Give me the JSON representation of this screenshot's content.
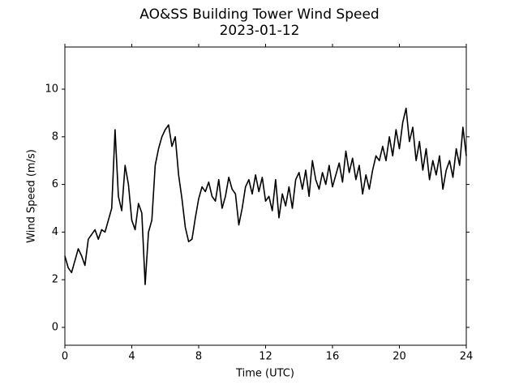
{
  "chart_data": {
    "type": "line",
    "title": "AO&SS Building Tower Wind Speed",
    "subtitle": "2023-01-12",
    "x_label": "Time (UTC)",
    "y_label": "Wind Speed (m/s)",
    "xlim": [
      0,
      24
    ],
    "xticks": [
      0,
      4,
      8,
      12,
      16,
      20,
      24
    ],
    "ylim": [
      -0.75,
      11.77
    ],
    "yticks": [
      0,
      2,
      4,
      6,
      8,
      10
    ],
    "grid": false,
    "x": [
      0,
      0.2,
      0.4,
      0.6,
      0.8,
      1,
      1.2,
      1.4,
      1.6,
      1.8,
      2,
      2.2,
      2.4,
      2.6,
      2.8,
      3,
      3.2,
      3.4,
      3.6,
      3.8,
      4,
      4.2,
      4.4,
      4.6,
      4.8,
      5,
      5.2,
      5.4,
      5.6,
      5.8,
      6,
      6.2,
      6.4,
      6.6,
      6.8,
      7,
      7.2,
      7.4,
      7.6,
      7.8,
      8,
      8.2,
      8.4,
      8.6,
      8.8,
      9,
      9.2,
      9.4,
      9.6,
      9.8,
      10,
      10.2,
      10.4,
      10.6,
      10.8,
      11,
      11.2,
      11.4,
      11.6,
      11.8,
      12,
      12.2,
      12.4,
      12.6,
      12.8,
      13,
      13.2,
      13.4,
      13.6,
      13.8,
      14,
      14.2,
      14.4,
      14.6,
      14.8,
      15,
      15.2,
      15.4,
      15.6,
      15.8,
      16,
      16.2,
      16.4,
      16.6,
      16.8,
      17,
      17.2,
      17.4,
      17.6,
      17.8,
      18,
      18.2,
      18.4,
      18.6,
      18.8,
      19,
      19.2,
      19.4,
      19.6,
      19.8,
      20,
      20.2,
      20.4,
      20.6,
      20.8,
      21,
      21.2,
      21.4,
      21.6,
      21.8,
      22,
      22.2,
      22.4,
      22.6,
      22.8,
      23,
      23.2,
      23.4,
      23.6,
      23.8,
      24
    ],
    "series": [
      {
        "name": "Wind Speed",
        "color": "#000000",
        "values": [
          3.0,
          2.5,
          2.3,
          2.8,
          3.3,
          3.0,
          2.6,
          3.7,
          3.9,
          4.1,
          3.7,
          4.1,
          4.0,
          4.5,
          5.0,
          8.3,
          5.5,
          4.9,
          6.8,
          6.0,
          4.5,
          4.1,
          5.2,
          4.8,
          1.8,
          4.0,
          4.5,
          6.8,
          7.5,
          8.0,
          8.3,
          8.5,
          7.6,
          8.0,
          6.4,
          5.4,
          4.2,
          3.6,
          3.7,
          4.6,
          5.4,
          5.9,
          5.7,
          6.1,
          5.5,
          5.3,
          6.2,
          5.0,
          5.5,
          6.3,
          5.8,
          5.6,
          4.3,
          5.0,
          5.9,
          6.2,
          5.6,
          6.4,
          5.7,
          6.3,
          5.3,
          5.5,
          4.9,
          6.2,
          4.6,
          5.6,
          5.1,
          5.9,
          5.0,
          6.2,
          6.5,
          5.8,
          6.6,
          5.5,
          7.0,
          6.2,
          5.8,
          6.5,
          6.0,
          6.8,
          5.9,
          6.4,
          6.9,
          6.1,
          7.4,
          6.5,
          7.1,
          6.2,
          6.8,
          5.6,
          6.4,
          5.8,
          6.6,
          7.2,
          7.0,
          7.6,
          7.0,
          8.0,
          7.2,
          8.3,
          7.5,
          8.6,
          9.2,
          7.8,
          8.4,
          7.0,
          7.8,
          6.6,
          7.5,
          6.2,
          7.0,
          6.4,
          7.2,
          5.8,
          6.6,
          7.0,
          6.3,
          7.5,
          6.8,
          8.4,
          7.2
        ]
      }
    ]
  }
}
